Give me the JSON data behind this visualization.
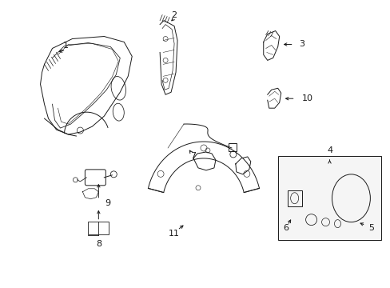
{
  "background_color": "#ffffff",
  "fig_width": 4.89,
  "fig_height": 3.6,
  "dpi": 100,
  "line_color": "#1a1a1a",
  "line_width": 0.7
}
